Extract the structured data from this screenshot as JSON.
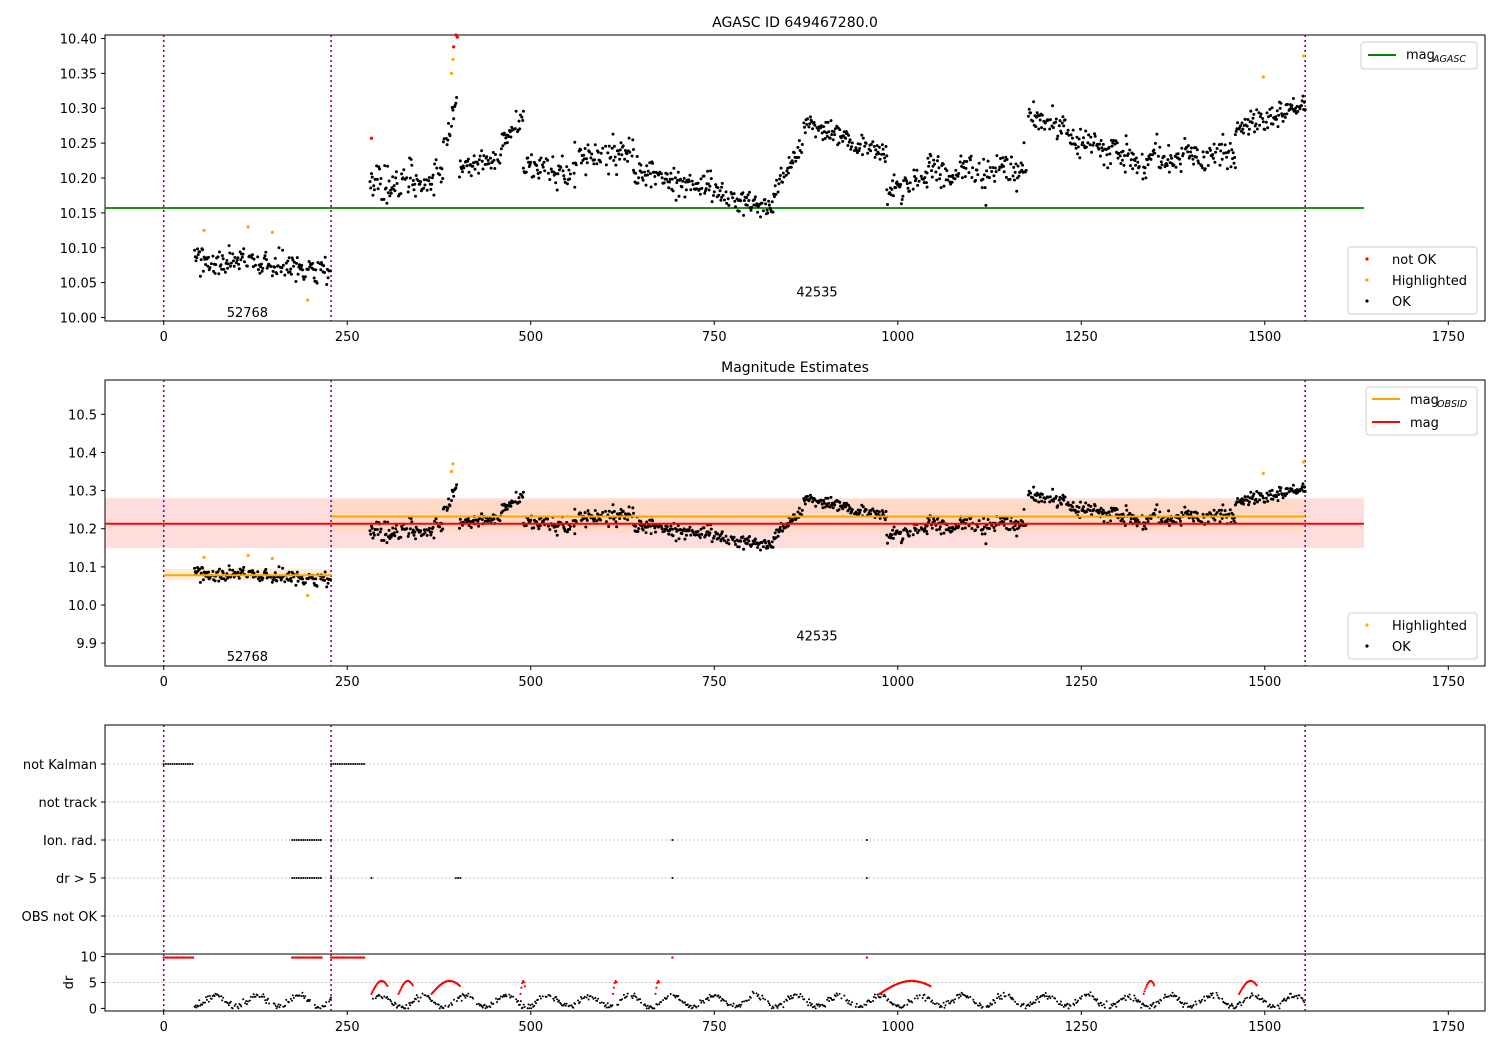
{
  "figure": {
    "title": "AGASC ID 649467280.0",
    "colors": {
      "ok": "#000000",
      "highlighted": "#ffa500",
      "not_ok": "#ff0000",
      "agasc_line": "#008000",
      "obsid_line": "#ffa500",
      "mag_line": "#ff0000",
      "obs_boundary": "#800080",
      "band_mag": "#ffb3b3",
      "band_obsid": "#ffd5a8"
    }
  },
  "chart_data": [
    {
      "type": "scatter",
      "title": "",
      "xlim": [
        -80,
        1800
      ],
      "ylim": [
        9.995,
        10.405
      ],
      "xticks": [
        0,
        250,
        500,
        750,
        1000,
        1250,
        1500,
        1750
      ],
      "yticks": [
        "10.00",
        "10.05",
        "10.10",
        "10.15",
        "10.20",
        "10.25",
        "10.30",
        "10.35",
        "10.40"
      ],
      "observation_boundaries": [
        0,
        228,
        1555
      ],
      "observation_labels": [
        {
          "text": "52768",
          "x": 114,
          "y": 10.008
        },
        {
          "text": "42535",
          "x": 890,
          "y": 10.037
        }
      ],
      "lines": [
        {
          "name": "mag_AGASC",
          "y": 10.157,
          "x_range": [
            -80,
            1635
          ]
        }
      ],
      "legend_lines": {
        "label": "mag",
        "subscript": "AGASC"
      },
      "legend_points": [
        {
          "label": "not OK",
          "color_key": "not_ok"
        },
        {
          "label": "Highlighted",
          "color_key": "highlighted"
        },
        {
          "label": "OK",
          "color_key": "ok"
        }
      ],
      "segments": [
        {
          "x": [
            42,
            228
          ],
          "y0": 10.085,
          "slope_per_sample": -0.00012,
          "noise": 0.016,
          "wave": 0.0
        },
        {
          "x": [
            280,
            380
          ],
          "y0": 10.19,
          "slope_per_sample": 0.0001,
          "noise": 0.022,
          "wave": 0.01
        },
        {
          "x": [
            380,
            400
          ],
          "y0": 10.25,
          "slope_per_sample": 0.004,
          "noise": 0.015,
          "wave": 0.0
        },
        {
          "x": [
            402,
            460
          ],
          "y0": 10.215,
          "slope_per_sample": 0.0003,
          "noise": 0.015,
          "wave": 0.0
        },
        {
          "x": [
            460,
            490
          ],
          "y0": 10.25,
          "slope_per_sample": 0.0014,
          "noise": 0.015,
          "wave": 0.0
        },
        {
          "x": [
            490,
            560
          ],
          "y0": 10.22,
          "slope_per_sample": -0.0003,
          "noise": 0.018,
          "wave": 0.0
        },
        {
          "x": [
            560,
            640
          ],
          "y0": 10.23,
          "slope_per_sample": 0.0001,
          "noise": 0.02,
          "wave": 0.0
        },
        {
          "x": [
            640,
            760
          ],
          "y0": 10.21,
          "slope_per_sample": -0.00025,
          "noise": 0.016,
          "wave": 0.0
        },
        {
          "x": [
            760,
            830
          ],
          "y0": 10.175,
          "slope_per_sample": -0.0003,
          "noise": 0.015,
          "wave": 0.0
        },
        {
          "x": [
            830,
            870
          ],
          "y0": 10.18,
          "slope_per_sample": 0.002,
          "noise": 0.015,
          "wave": 0.0
        },
        {
          "x": [
            870,
            930
          ],
          "y0": 10.28,
          "slope_per_sample": -0.0004,
          "noise": 0.016,
          "wave": 0.0
        },
        {
          "x": [
            930,
            985
          ],
          "y0": 10.25,
          "slope_per_sample": -0.0003,
          "noise": 0.015,
          "wave": 0.0
        },
        {
          "x": [
            985,
            1040
          ],
          "y0": 10.18,
          "slope_per_sample": 0.0004,
          "noise": 0.017,
          "wave": 0.0
        },
        {
          "x": [
            1040,
            1175
          ],
          "y0": 10.205,
          "slope_per_sample": 8e-05,
          "noise": 0.02,
          "wave": 0.01
        },
        {
          "x": [
            1178,
            1230
          ],
          "y0": 10.285,
          "slope_per_sample": -0.0002,
          "noise": 0.017,
          "wave": 0.0
        },
        {
          "x": [
            1230,
            1300
          ],
          "y0": 10.26,
          "slope_per_sample": -0.0004,
          "noise": 0.018,
          "wave": 0.0
        },
        {
          "x": [
            1300,
            1460
          ],
          "y0": 10.225,
          "slope_per_sample": 5e-05,
          "noise": 0.017,
          "wave": 0.008
        },
        {
          "x": [
            1460,
            1555
          ],
          "y0": 10.27,
          "slope_per_sample": 0.0004,
          "noise": 0.017,
          "wave": 0.0
        }
      ],
      "highlighted_points": [
        {
          "x": 55,
          "y": 10.125
        },
        {
          "x": 115,
          "y": 10.13
        },
        {
          "x": 148,
          "y": 10.122
        },
        {
          "x": 196,
          "y": 10.025
        },
        {
          "x": 392,
          "y": 10.35
        },
        {
          "x": 394,
          "y": 10.37
        },
        {
          "x": 1498,
          "y": 10.345
        },
        {
          "x": 1553,
          "y": 10.375
        }
      ],
      "not_ok_points": [
        {
          "x": 283,
          "y": 10.257
        },
        {
          "x": 395,
          "y": 10.388
        },
        {
          "x": 398,
          "y": 10.405
        },
        {
          "x": 400,
          "y": 10.402
        }
      ]
    },
    {
      "type": "scatter",
      "title": "Magnitude Estimates",
      "xlim": [
        -80,
        1800
      ],
      "ylim": [
        9.84,
        10.59
      ],
      "xticks": [
        0,
        250,
        500,
        750,
        1000,
        1250,
        1500,
        1750
      ],
      "yticks": [
        "9.9",
        "10.0",
        "10.1",
        "10.2",
        "10.3",
        "10.4",
        "10.5"
      ],
      "observation_boundaries": [
        0,
        228,
        1555
      ],
      "observation_labels": [
        {
          "text": "52768",
          "x": 114,
          "y": 9.866
        },
        {
          "text": "42535",
          "x": 890,
          "y": 9.92
        }
      ],
      "bands": [
        {
          "name": "mag band",
          "y0": 10.15,
          "y1": 10.28,
          "x_range": [
            -80,
            1635
          ],
          "color_key": "band_mag"
        },
        {
          "name": "obsid band 1",
          "y0": 10.065,
          "y1": 10.095,
          "x_range": [
            0,
            228
          ],
          "color_key": "band_obsid"
        },
        {
          "name": "obsid band 2",
          "y0": 10.19,
          "y1": 10.275,
          "x_range": [
            228,
            1555
          ],
          "color_key": "band_obsid"
        }
      ],
      "lines": [
        {
          "name": "mag_OBSID",
          "y": 10.078,
          "x_range": [
            0,
            228
          ],
          "color_key": "obsid_line"
        },
        {
          "name": "mag_OBSID",
          "y": 10.232,
          "x_range": [
            228,
            1555
          ],
          "color_key": "obsid_line"
        },
        {
          "name": "mag",
          "y": 10.213,
          "x_range": [
            -80,
            1635
          ],
          "color_key": "mag_line"
        }
      ],
      "legend_lines": [
        {
          "label": "mag",
          "subscript": "OBSID",
          "color_key": "obsid_line"
        },
        {
          "label": "mag",
          "subscript": "",
          "color_key": "mag_line"
        }
      ],
      "legend_points": [
        {
          "label": "Highlighted",
          "color_key": "highlighted"
        },
        {
          "label": "OK",
          "color_key": "ok"
        }
      ],
      "highlighted_points": [
        {
          "x": 55,
          "y": 10.125
        },
        {
          "x": 115,
          "y": 10.13
        },
        {
          "x": 148,
          "y": 10.122
        },
        {
          "x": 196,
          "y": 10.025
        },
        {
          "x": 392,
          "y": 10.35
        },
        {
          "x": 394,
          "y": 10.37
        },
        {
          "x": 1498,
          "y": 10.345
        },
        {
          "x": 1553,
          "y": 10.375
        }
      ]
    },
    {
      "type": "scatter",
      "title": "",
      "xlim": [
        -80,
        1800
      ],
      "categories": [
        "not Kalman",
        "not track",
        "Ion. rad.",
        "dr > 5",
        "OBS not OK"
      ],
      "observation_boundaries": [
        0,
        228,
        1555
      ],
      "flags": {
        "not Kalman": [
          [
            0,
            40
          ],
          [
            228,
            275
          ]
        ],
        "not track": [],
        "Ion. rad.": [
          [
            175,
            215
          ],
          [
            228,
            229
          ],
          [
            693,
            694
          ],
          [
            958,
            959
          ]
        ],
        "dr > 5": [
          [
            175,
            215
          ],
          [
            228,
            229
          ],
          [
            283,
            284
          ],
          [
            398,
            404
          ],
          [
            693,
            694
          ],
          [
            958,
            959
          ]
        ],
        "OBS not OK": []
      }
    },
    {
      "type": "scatter",
      "title": "",
      "xlim": [
        -80,
        1800
      ],
      "ylim": [
        -0.5,
        10.5
      ],
      "ylabel": "dr",
      "yticks": [
        "0",
        "5",
        "10"
      ],
      "xticks": [
        0,
        250,
        500,
        750,
        1000,
        1250,
        1500,
        1750
      ],
      "observation_boundaries": [
        0,
        228,
        1555
      ],
      "clipped_points_at_10": [
        [
          0,
          40
        ],
        [
          175,
          215
        ],
        [
          228,
          275
        ],
        [
          693,
          694
        ],
        [
          958,
          959
        ]
      ],
      "red_arcs": [
        [
          283,
          305
        ],
        [
          320,
          340
        ],
        [
          365,
          404
        ],
        [
          486,
          492
        ],
        [
          612,
          618
        ],
        [
          670,
          676
        ],
        [
          975,
          1045
        ],
        [
          1335,
          1350
        ],
        [
          1465,
          1490
        ]
      ],
      "black_ranges": [
        [
          42,
          228
        ],
        [
          285,
          1555
        ]
      ]
    }
  ]
}
